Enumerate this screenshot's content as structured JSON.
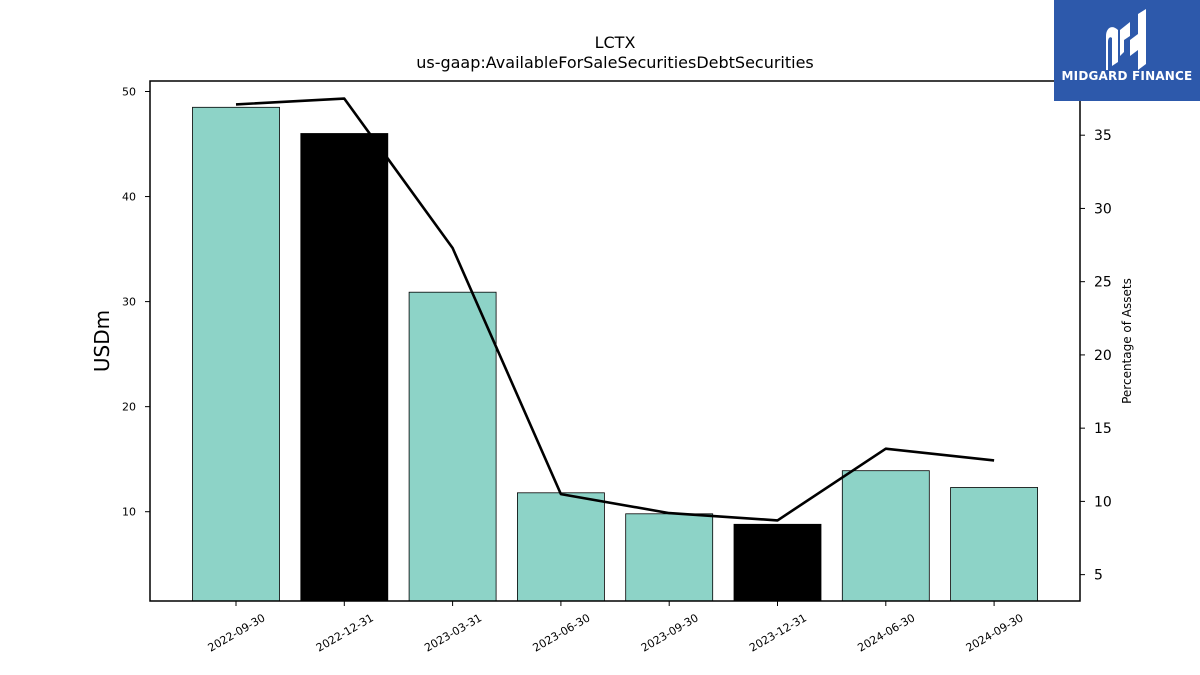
{
  "logo": {
    "text": "MIDGARD FINANCE",
    "bg_color": "#2d59ab"
  },
  "chart_data": {
    "type": "bar",
    "title": "LCTX",
    "subtitle": "us-gaap:AvailableForSaleSecuritiesDebtSecurities",
    "categories": [
      "2022-09-30",
      "2022-12-31",
      "2023-03-31",
      "2023-06-30",
      "2023-09-30",
      "2023-12-31",
      "2024-06-30",
      "2024-09-30"
    ],
    "bars": {
      "values": [
        48.5,
        46.0,
        30.9,
        11.8,
        9.8,
        8.8,
        13.9,
        12.3
      ],
      "colors": [
        "#8dd3c7",
        "#000000",
        "#8dd3c7",
        "#8dd3c7",
        "#8dd3c7",
        "#000000",
        "#8dd3c7",
        "#8dd3c7"
      ]
    },
    "line": {
      "axis": "right",
      "values": [
        37.1,
        37.5,
        27.3,
        10.5,
        9.2,
        8.7,
        13.6,
        12.8
      ],
      "color": "#000000"
    },
    "ylabel": "USDm",
    "ylabel_right": "Percentage of Assets",
    "ylim": [
      1.5,
      51
    ],
    "ylim_right": [
      3.2,
      38.7
    ],
    "yticks": [
      10,
      20,
      30,
      40,
      50
    ],
    "yticks_right": [
      5,
      10,
      15,
      20,
      25,
      30,
      35
    ],
    "grid": false,
    "legend": "none"
  }
}
